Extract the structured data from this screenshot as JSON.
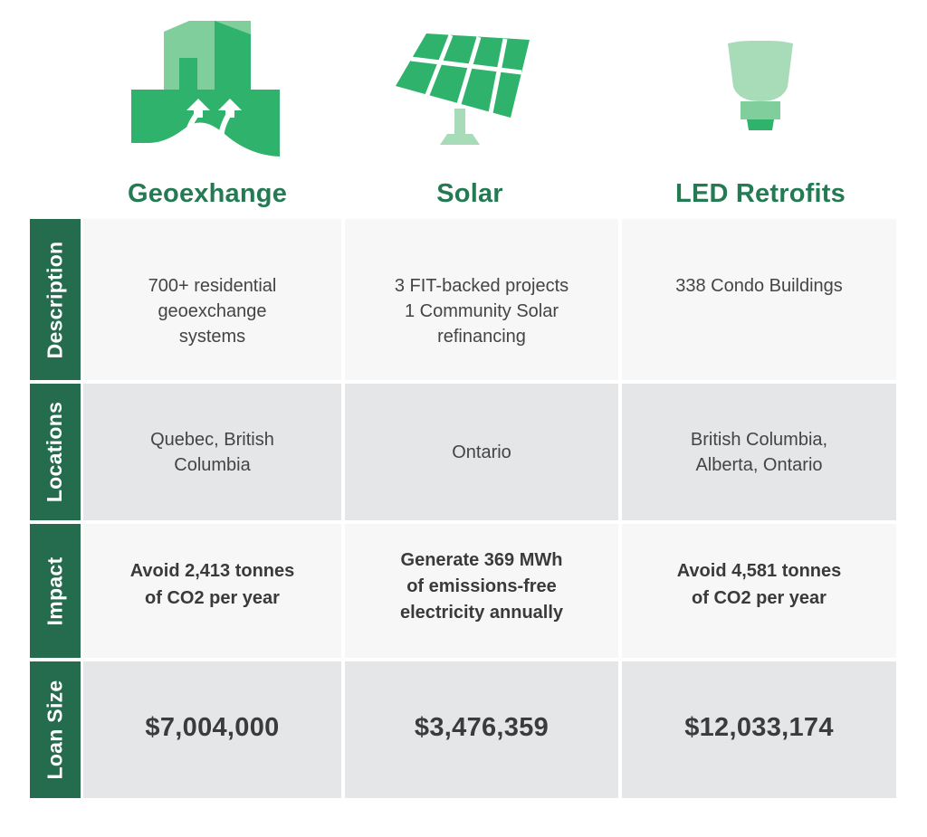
{
  "columns": [
    {
      "title": "Geoexhange",
      "icon": "geoexchange-building-icon"
    },
    {
      "title": "Solar",
      "icon": "solar-panel-icon"
    },
    {
      "title": "LED Retrofits",
      "icon": "led-bulb-icon"
    }
  ],
  "rows": {
    "description": {
      "label": "Description",
      "cells": [
        "700+ residential\ngeoexchange\nsystems",
        "3 FIT-backed projects\n1 Community Solar\nrefinancing",
        "338 Condo Buildings"
      ]
    },
    "locations": {
      "label": "Locations",
      "cells": [
        "Quebec, British\nColumbia",
        "Ontario",
        "British Columbia,\nAlberta, Ontario"
      ]
    },
    "impact": {
      "label": "Impact",
      "cells": [
        "Avoid 2,413 tonnes\nof CO2 per year",
        "Generate 369 MWh\nof emissions-free\nelectricity annually",
        "Avoid 4,581 tonnes\nof CO2 per year"
      ]
    },
    "loan_size": {
      "label": "Loan Size",
      "cells": [
        "$7,004,000",
        "$3,476,359",
        "$12,033,174"
      ]
    }
  },
  "colors": {
    "accent_green": "#2fb36c",
    "label_green": "#246c4d",
    "title_green": "#247a52",
    "light_green": "#a8dcb9",
    "cell_light": "#f7f7f7",
    "cell_dark": "#e5e6e8"
  }
}
